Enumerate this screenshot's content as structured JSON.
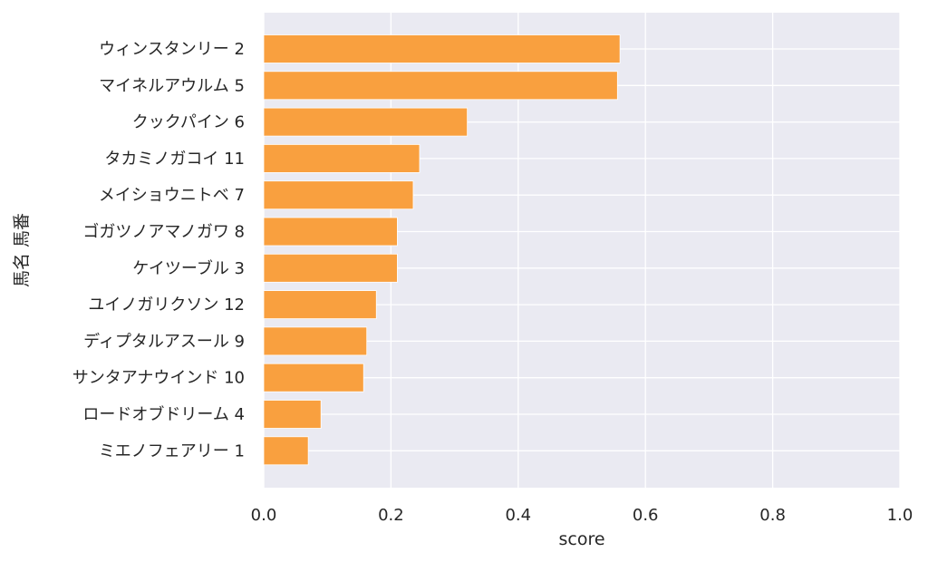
{
  "chart_data": {
    "type": "bar",
    "orientation": "horizontal",
    "xlabel": "score",
    "ylabel": "馬名 馬番",
    "xlim": [
      0,
      1.0
    ],
    "xticks": [
      "0.0",
      "0.2",
      "0.4",
      "0.6",
      "0.8",
      "1.0"
    ],
    "xtick_values": [
      0,
      0.2,
      0.4,
      0.6,
      0.8,
      1.0
    ],
    "grid": true,
    "bar_color": "#f9a03f",
    "background_color": "#eaeaf2",
    "categories": [
      "ウィンスタンリー 2",
      "マイネルアウルム 5",
      "クックパイン 6",
      "タカミノガコイ 11",
      "メイショウニトベ 7",
      "ゴガツノアマノガワ 8",
      "ケイツーブル 3",
      "ユイノガリクソン 12",
      "ディプタルアスール 9",
      "サンタアナウインド 10",
      "ロードオブドリーム 4",
      "ミエノフェアリー 1"
    ],
    "values": [
      0.56,
      0.556,
      0.32,
      0.245,
      0.235,
      0.21,
      0.21,
      0.177,
      0.162,
      0.157,
      0.09,
      0.07
    ]
  }
}
